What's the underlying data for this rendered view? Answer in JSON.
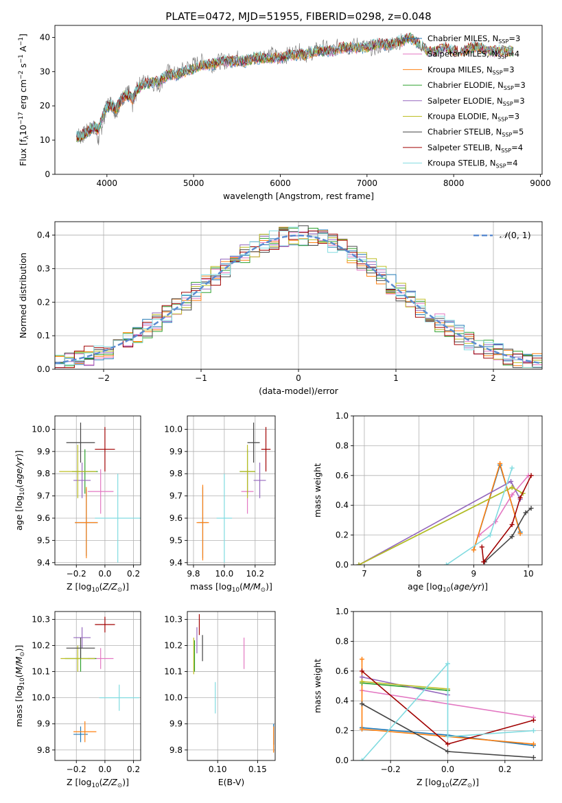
{
  "page_title": "PLATE=0472, MJD=51955, FIBERID=0298, z=0.048",
  "chart_data": [
    {
      "id": "spectrum",
      "type": "line",
      "title": "PLATE=0472, MJD=51955, FIBERID=0298, z=0.048",
      "xlabel": "wavelength [Angstrom, rest frame]",
      "ylabel": "Flux [f_λ10^-17 erg cm^-2 s^-1 A^-1]",
      "xlim": [
        3400,
        9020
      ],
      "ylim": [
        0,
        43.5
      ],
      "xticks": [
        4000,
        5000,
        6000,
        7000,
        8000,
        9000
      ],
      "yticks": [
        0,
        10,
        20,
        30,
        40
      ],
      "grid": false,
      "legend_position": "top-right",
      "series": [
        {
          "name": "Chabrier MILES, N_SSP=3",
          "color": "#1f77b4"
        },
        {
          "name": "Salpeter MILES, N_SSP=4",
          "color": "#e377c2"
        },
        {
          "name": "Kroupa MILES, N_SSP=3",
          "color": "#ff7f0e"
        },
        {
          "name": "Chabrier ELODIE, N_SSP=3",
          "color": "#2ca02c"
        },
        {
          "name": "Salpeter ELODIE, N_SSP=3",
          "color": "#9467bd"
        },
        {
          "name": "Kroupa ELODIE, N_SSP=3",
          "color": "#bcbd22"
        },
        {
          "name": "Chabrier STELIB, N_SSP=5",
          "color": "#444444"
        },
        {
          "name": "Salpeter STELIB, N_SSP=4",
          "color": "#a00000"
        },
        {
          "name": "Kroupa STELIB, N_SSP=4",
          "color": "#80dbe0"
        }
      ],
      "observed": {
        "color": "#808080",
        "x": [
          3650,
          3700,
          3750,
          3800,
          3850,
          3900,
          3950,
          4000,
          4050,
          4100,
          4150,
          4200,
          4250,
          4300,
          4350,
          4400,
          4500,
          4600,
          4700,
          4800,
          4900,
          5000,
          5100,
          5200,
          5300,
          5400,
          5500,
          5600,
          5700,
          5800,
          5900,
          6000,
          6100,
          6200,
          6300,
          6400,
          6500,
          6600,
          6700,
          6800,
          6900,
          7000,
          7100,
          7200,
          7300,
          7400
        ],
        "y": [
          12,
          11,
          12,
          13,
          14,
          10,
          15,
          20,
          21,
          18,
          21,
          23,
          24,
          20,
          25,
          27,
          27,
          26,
          30,
          29,
          31,
          32,
          33,
          32,
          33,
          33,
          34,
          33,
          34,
          35,
          35,
          34,
          35,
          36,
          35,
          36,
          37,
          36,
          38,
          37,
          38,
          37,
          37,
          38,
          38,
          39
        ]
      },
      "model": {
        "x": [
          3650,
          3700,
          3750,
          3800,
          3850,
          3900,
          3950,
          4000,
          4050,
          4100,
          4150,
          4200,
          4250,
          4300,
          4350,
          4400,
          4500,
          4600,
          4700,
          4800,
          4900,
          5000,
          5100,
          5200,
          5300,
          5400,
          5500,
          5600,
          5700,
          5800,
          5900,
          6000,
          6100,
          6200,
          6300,
          6400,
          6500,
          6600,
          6700,
          6800,
          6900,
          7000,
          7100,
          7200,
          7300,
          7400,
          7500,
          7600,
          7700,
          7800,
          7900,
          8000,
          8100,
          8200,
          8300,
          8400,
          8500,
          8600,
          8700
        ],
        "y": [
          11,
          11,
          12,
          13,
          14,
          13,
          17,
          20,
          20,
          19,
          21,
          23,
          23,
          22,
          25,
          26,
          27,
          27,
          29,
          29,
          30,
          31,
          32,
          32,
          33,
          33,
          33,
          33,
          34,
          34,
          34,
          34,
          35,
          35,
          35,
          36,
          36,
          36,
          37,
          37,
          37,
          37,
          38,
          38,
          38,
          39,
          40,
          38,
          36,
          36,
          37,
          36,
          36,
          37,
          37,
          36,
          36,
          36,
          36
        ]
      }
    },
    {
      "id": "residual-hist",
      "type": "histogram",
      "xlabel": "(data-model)/error",
      "ylabel": "Normed distribution",
      "xlim": [
        -2.5,
        2.5
      ],
      "ylim": [
        0,
        0.44
      ],
      "xticks": [
        -2,
        -1,
        0,
        1,
        2
      ],
      "yticks": [
        0.0,
        0.1,
        0.2,
        0.3,
        0.4
      ],
      "grid": true,
      "bins": 50,
      "reference_curve": {
        "name": "𝒩(0,1)",
        "color": "#5b8bd0",
        "style": "dashed"
      },
      "legend_position": "top-right",
      "series_colors": [
        "#1f77b4",
        "#e377c2",
        "#ff7f0e",
        "#2ca02c",
        "#9467bd",
        "#bcbd22",
        "#444444",
        "#a00000",
        "#80dbe0"
      ]
    },
    {
      "id": "age-vs-Z",
      "type": "scatter",
      "xlabel": "Z [log10(Z/Z⊙)]",
      "ylabel": "age [log10(age/yr)]",
      "xlim": [
        -0.35,
        0.25
      ],
      "ylim": [
        9.39,
        10.06
      ],
      "xticks": [
        -0.2,
        0.0,
        0.2
      ],
      "yticks": [
        9.4,
        9.5,
        9.6,
        9.7,
        9.8,
        9.9,
        10.0
      ],
      "grid": true,
      "points": [
        {
          "x": -0.13,
          "y": 9.58,
          "xerr": 0.08,
          "yerr": 0.15,
          "color": "#1f77b4"
        },
        {
          "x": -0.03,
          "y": 9.72,
          "xerr": 0.09,
          "yerr": 0.1,
          "color": "#e377c2"
        },
        {
          "x": -0.13,
          "y": 9.58,
          "xerr": 0.08,
          "yerr": 0.16,
          "color": "#ff7f0e"
        },
        {
          "x": -0.14,
          "y": 9.81,
          "xerr": 0.09,
          "yerr": 0.1,
          "color": "#2ca02c"
        },
        {
          "x": -0.16,
          "y": 9.77,
          "xerr": 0.06,
          "yerr": 0.08,
          "color": "#9467bd"
        },
        {
          "x": -0.19,
          "y": 9.81,
          "xerr": 0.13,
          "yerr": 0.12,
          "color": "#bcbd22"
        },
        {
          "x": -0.17,
          "y": 9.94,
          "xerr": 0.1,
          "yerr": 0.09,
          "color": "#444444"
        },
        {
          "x": 0.0,
          "y": 9.91,
          "xerr": 0.07,
          "yerr": 0.1,
          "color": "#a00000"
        },
        {
          "x": 0.09,
          "y": 9.6,
          "xerr": 0.16,
          "yerr": 0.2,
          "color": "#80dbe0"
        }
      ]
    },
    {
      "id": "age-vs-mass",
      "type": "scatter",
      "xlabel": "mass [log10(M/M⊙)]",
      "ylabel": "",
      "xlim": [
        9.76,
        10.33
      ],
      "ylim": [
        9.39,
        10.06
      ],
      "xticks": [
        9.8,
        10.0,
        10.2
      ],
      "yticks": [
        9.4,
        9.5,
        9.6,
        9.7,
        9.8,
        9.9,
        10.0
      ],
      "grid": true,
      "points": [
        {
          "x": 9.86,
          "y": 9.58,
          "xerr": 0.03,
          "yerr": 0.16,
          "color": "#1f77b4"
        },
        {
          "x": 10.15,
          "y": 9.72,
          "xerr": 0.04,
          "yerr": 0.1,
          "color": "#e377c2"
        },
        {
          "x": 9.86,
          "y": 9.58,
          "xerr": 0.04,
          "yerr": 0.17,
          "color": "#ff7f0e"
        },
        {
          "x": 10.15,
          "y": 9.81,
          "xerr": 0.05,
          "yerr": 0.1,
          "color": "#2ca02c"
        },
        {
          "x": 10.23,
          "y": 9.77,
          "xerr": 0.04,
          "yerr": 0.08,
          "color": "#9467bd"
        },
        {
          "x": 10.15,
          "y": 9.81,
          "xerr": 0.05,
          "yerr": 0.12,
          "color": "#bcbd22"
        },
        {
          "x": 10.19,
          "y": 9.94,
          "xerr": 0.04,
          "yerr": 0.09,
          "color": "#444444"
        },
        {
          "x": 10.27,
          "y": 9.91,
          "xerr": 0.03,
          "yerr": 0.1,
          "color": "#a00000"
        },
        {
          "x": 10.0,
          "y": 9.6,
          "xerr": 0.05,
          "yerr": 0.2,
          "color": "#80dbe0"
        }
      ]
    },
    {
      "id": "massweight-vs-age",
      "type": "line",
      "xlabel": "age [log10(age/yr)]",
      "ylabel": "mass weight",
      "xlim": [
        6.8,
        10.25
      ],
      "ylim": [
        0,
        1.0
      ],
      "xticks": [
        7,
        8,
        9,
        10
      ],
      "yticks": [
        0.0,
        0.2,
        0.4,
        0.6,
        0.8,
        1.0
      ],
      "grid": true,
      "series": [
        {
          "color": "#1f77b4",
          "x": [
            9.0,
            9.48,
            9.85
          ],
          "y": [
            0.1,
            0.67,
            0.22
          ]
        },
        {
          "color": "#e377c2",
          "x": [
            9.1,
            9.4,
            9.7,
            10.0
          ],
          "y": [
            0.2,
            0.29,
            0.47,
            0.6
          ]
        },
        {
          "color": "#ff7f0e",
          "x": [
            9.0,
            9.48,
            9.85
          ],
          "y": [
            0.1,
            0.68,
            0.21
          ]
        },
        {
          "color": "#2ca02c",
          "x": [
            6.9,
            9.7,
            9.9
          ],
          "y": [
            0.0,
            0.52,
            0.48
          ]
        },
        {
          "color": "#9467bd",
          "x": [
            6.9,
            9.68,
            9.85
          ],
          "y": [
            0.0,
            0.56,
            0.44
          ]
        },
        {
          "color": "#bcbd22",
          "x": [
            6.9,
            9.7,
            9.9
          ],
          "y": [
            0.0,
            0.52,
            0.48
          ]
        },
        {
          "color": "#444444",
          "x": [
            9.2,
            9.7,
            9.95,
            10.05
          ],
          "y": [
            0.02,
            0.19,
            0.35,
            0.38
          ]
        },
        {
          "color": "#a00000",
          "x": [
            9.15,
            9.18,
            9.7,
            9.85,
            10.05
          ],
          "y": [
            0.12,
            0.02,
            0.27,
            0.45,
            0.6
          ]
        },
        {
          "color": "#80dbe0",
          "x": [
            8.5,
            9.3,
            9.7
          ],
          "y": [
            0.0,
            0.2,
            0.65
          ]
        }
      ]
    },
    {
      "id": "mass-vs-Z",
      "type": "scatter",
      "xlabel": "Z [log10(Z/Z⊙)]",
      "ylabel": "mass [log10(M/M⊙)]",
      "xlim": [
        -0.35,
        0.25
      ],
      "ylim": [
        9.76,
        10.33
      ],
      "xticks": [
        -0.2,
        0.0,
        0.2
      ],
      "yticks": [
        9.8,
        9.9,
        10.0,
        10.1,
        10.2,
        10.3
      ],
      "grid": true,
      "points": [
        {
          "x": -0.17,
          "y": 9.86,
          "xerr": 0.05,
          "yerr": 0.03,
          "color": "#1f77b4"
        },
        {
          "x": -0.03,
          "y": 10.15,
          "xerr": 0.09,
          "yerr": 0.04,
          "color": "#e377c2"
        },
        {
          "x": -0.14,
          "y": 9.87,
          "xerr": 0.08,
          "yerr": 0.04,
          "color": "#ff7f0e"
        },
        {
          "x": -0.17,
          "y": 10.15,
          "xerr": 0.11,
          "yerr": 0.05,
          "color": "#2ca02c"
        },
        {
          "x": -0.16,
          "y": 10.23,
          "xerr": 0.06,
          "yerr": 0.04,
          "color": "#9467bd"
        },
        {
          "x": -0.19,
          "y": 10.15,
          "xerr": 0.12,
          "yerr": 0.05,
          "color": "#bcbd22"
        },
        {
          "x": -0.17,
          "y": 10.19,
          "xerr": 0.1,
          "yerr": 0.04,
          "color": "#444444"
        },
        {
          "x": 0.0,
          "y": 10.28,
          "xerr": 0.07,
          "yerr": 0.03,
          "color": "#a00000"
        },
        {
          "x": 0.1,
          "y": 10.0,
          "xerr": 0.14,
          "yerr": 0.05,
          "color": "#80dbe0"
        }
      ]
    },
    {
      "id": "mass-vs-ebv",
      "type": "scatter",
      "xlabel": "E(B-V)",
      "ylabel": "",
      "xlim": [
        0.062,
        0.172
      ],
      "ylim": [
        9.76,
        10.33
      ],
      "xticks": [
        0.1,
        0.15
      ],
      "yticks": [
        9.8,
        9.9,
        10.0,
        10.1,
        10.2,
        10.3
      ],
      "grid": true,
      "points": [
        {
          "x": 0.17,
          "y": 9.86,
          "yerr": 0.04,
          "color": "#1f77b4"
        },
        {
          "x": 0.133,
          "y": 10.17,
          "yerr": 0.06,
          "color": "#e377c2"
        },
        {
          "x": 0.17,
          "y": 9.84,
          "yerr": 0.05,
          "color": "#ff7f0e"
        },
        {
          "x": 0.071,
          "y": 10.16,
          "yerr": 0.06,
          "color": "#2ca02c"
        },
        {
          "x": 0.074,
          "y": 10.22,
          "yerr": 0.05,
          "color": "#9467bd"
        },
        {
          "x": 0.07,
          "y": 10.16,
          "yerr": 0.07,
          "color": "#bcbd22"
        },
        {
          "x": 0.081,
          "y": 10.19,
          "yerr": 0.05,
          "color": "#444444"
        },
        {
          "x": 0.077,
          "y": 10.28,
          "yerr": 0.04,
          "color": "#a00000"
        },
        {
          "x": 0.097,
          "y": 10.0,
          "yerr": 0.06,
          "color": "#80dbe0"
        }
      ]
    },
    {
      "id": "massweight-vs-Z",
      "type": "line",
      "xlabel": "Z [log10(Z/Z⊙)]",
      "ylabel": "mass weight",
      "xlim": [
        -0.33,
        0.33
      ],
      "ylim": [
        0,
        1.0
      ],
      "xticks": [
        -0.2,
        0.0,
        0.2
      ],
      "yticks": [
        0.0,
        0.2,
        0.4,
        0.6,
        0.8,
        1.0
      ],
      "grid": true,
      "series": [
        {
          "color": "#1f77b4",
          "x": [
            -0.3,
            0.0,
            0.3
          ],
          "y": [
            0.22,
            0.17,
            0.1
          ]
        },
        {
          "color": "#e377c2",
          "x": [
            -0.3,
            0.3
          ],
          "y": [
            0.47,
            0.29
          ]
        },
        {
          "color": "#ff7f0e",
          "x": [
            -0.3,
            -0.3,
            0.3
          ],
          "y": [
            0.68,
            0.21,
            0.11
          ]
        },
        {
          "color": "#2ca02c",
          "x": [
            -0.3,
            0.0
          ],
          "y": [
            0.52,
            0.47
          ]
        },
        {
          "color": "#9467bd",
          "x": [
            -0.3,
            0.0
          ],
          "y": [
            0.56,
            0.44
          ]
        },
        {
          "color": "#bcbd22",
          "x": [
            -0.3,
            0.0
          ],
          "y": [
            0.53,
            0.48
          ]
        },
        {
          "color": "#444444",
          "x": [
            -0.3,
            0.0,
            0.3
          ],
          "y": [
            0.38,
            0.06,
            0.02
          ]
        },
        {
          "color": "#a00000",
          "x": [
            -0.3,
            0.0,
            0.3
          ],
          "y": [
            0.6,
            0.11,
            0.27
          ]
        },
        {
          "color": "#80dbe0",
          "x": [
            -0.3,
            0.0,
            0.0,
            0.3
          ],
          "y": [
            0.0,
            0.65,
            0.16,
            0.2
          ]
        }
      ]
    }
  ]
}
